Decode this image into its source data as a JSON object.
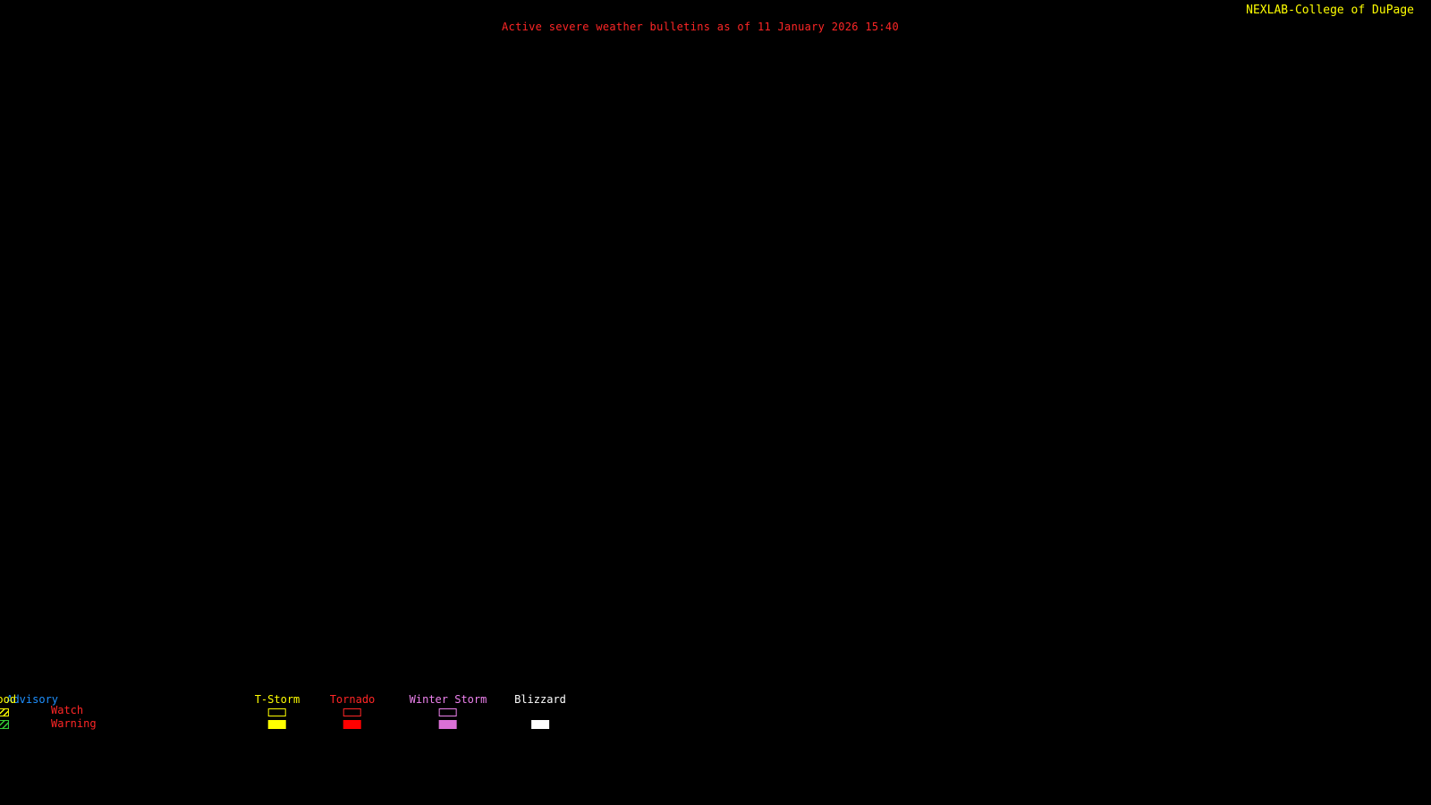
{
  "header": {
    "title": "Active severe weather bulletins as of 11 January 2026 15:40",
    "title_color": "#ff2626",
    "attribution": "NEXLAB-College of DuPage",
    "attribution_color": "#ffff00",
    "logo_icon": "dupage-arrow-box-icon"
  },
  "map": {
    "background_color": "#000000",
    "visible_features": "none"
  },
  "legend": {
    "watch_label": "Watch",
    "warning_label": "Warning",
    "row_label_color": "#ff2626",
    "columns": [
      {
        "id": "tstorm",
        "label": "T-Storm",
        "label_color": "#ffff00",
        "watch": {
          "style": "outline",
          "color": "#ffff00"
        },
        "warning": {
          "style": "fill",
          "color": "#ffff00"
        }
      },
      {
        "id": "tornado",
        "label": "Tornado",
        "label_color": "#ff2626",
        "watch": {
          "style": "outline",
          "color": "#ff2626"
        },
        "warning": {
          "style": "fill",
          "color": "#ff0000"
        }
      },
      {
        "id": "winter-storm",
        "label": "Winter Storm",
        "label_color": "#ee82ee",
        "watch": {
          "style": "outline",
          "color": "#ee82ee"
        },
        "warning": {
          "style": "fill",
          "color": "#da70d6"
        }
      },
      {
        "id": "blizzard",
        "label": "Blizzard",
        "label_color": "#ffffff",
        "watch": {
          "style": "none",
          "color": ""
        },
        "warning": {
          "style": "fill",
          "color": "#ffffff"
        }
      },
      {
        "id": "winter-wx-advisory",
        "label": "Winter Wx Advisory",
        "label_color": "#1e90ff",
        "watch": {
          "style": "none",
          "color": ""
        },
        "warning": {
          "style": "hatch",
          "color": "#1e90ff"
        }
      },
      {
        "id": "flood",
        "label": "Flood",
        "label_color": "#ffff00",
        "watch": {
          "style": "hatch",
          "color": "#ffff00"
        },
        "warning": {
          "style": "hatch",
          "color": "#33cc33"
        }
      }
    ]
  }
}
